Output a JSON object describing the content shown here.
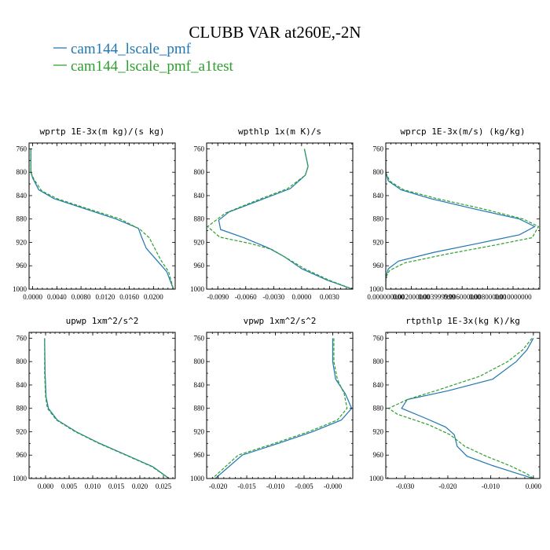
{
  "figure": {
    "title": "CLUBB VAR at260E,-2N",
    "legend": [
      {
        "label": "cam144_lscale_pmf",
        "color": "#1f77b4",
        "dash": "solid"
      },
      {
        "label": "cam144_lscale_pmf_a1test",
        "color": "#2ca02c",
        "dash": "dashed"
      }
    ]
  },
  "chart_data": [
    {
      "type": "line",
      "title": "wprtp  1E-3x(m kg)/(s kg)",
      "y": {
        "label": "",
        "reversed": true,
        "range": [
          1000,
          750
        ],
        "ticks": [
          760,
          800,
          840,
          880,
          920,
          960,
          1000
        ],
        "tick_labels": [
          "760",
          "800",
          "840",
          "880",
          "920",
          "960",
          "1000"
        ]
      },
      "x": {
        "label": "",
        "range": [
          -0.0006,
          0.0236
        ],
        "ticks": [
          0.0,
          0.004,
          0.008,
          0.012,
          0.016,
          0.02
        ],
        "tick_labels": [
          "0.0000",
          "0.0040",
          "0.0080",
          "0.0120",
          "0.0160",
          "0.0200"
        ]
      },
      "series": [
        {
          "name": "cam144_lscale_pmf",
          "color": "#1f77b4",
          "dash": "solid",
          "x": [
            -0.0003,
            -0.0003,
            0.0,
            0.001,
            0.0035,
            0.0085,
            0.0138,
            0.0175,
            0.018,
            0.0188,
            0.0205,
            0.0222,
            0.0233
          ],
          "y": [
            760,
            800,
            810,
            830,
            845,
            862,
            880,
            896,
            910,
            930,
            950,
            970,
            1000
          ]
        },
        {
          "name": "cam144_lscale_pmf_a1test",
          "color": "#2ca02c",
          "dash": "dashed",
          "x": [
            -0.0003,
            -0.0003,
            0.0002,
            0.0015,
            0.004,
            0.009,
            0.0145,
            0.0178,
            0.0193,
            0.0202,
            0.0212,
            0.0225,
            0.0233
          ],
          "y": [
            760,
            800,
            812,
            832,
            845,
            862,
            880,
            898,
            912,
            930,
            950,
            970,
            1000
          ]
        }
      ]
    },
    {
      "type": "line",
      "title": "wpthlp  1x(m K)/s",
      "y": {
        "label": "",
        "reversed": true,
        "range": [
          1000,
          750
        ],
        "ticks": [
          760,
          800,
          840,
          880,
          920,
          960,
          1000
        ],
        "tick_labels": [
          "760",
          "800",
          "840",
          "880",
          "920",
          "960",
          "1000"
        ]
      },
      "x": {
        "label": "",
        "range": [
          -0.0102,
          0.0055
        ],
        "ticks": [
          -0.009,
          -0.006,
          -0.003,
          0.0,
          0.003
        ],
        "tick_labels": [
          "-0.0090",
          "-0.0060",
          "-0.0030",
          "0.0000",
          "0.0030"
        ]
      },
      "series": [
        {
          "name": "cam144_lscale_pmf",
          "color": "#1f77b4",
          "dash": "solid",
          "x": [
            0.0003,
            0.0007,
            0.0004,
            -0.0012,
            -0.0045,
            -0.0078,
            -0.0089,
            -0.0087,
            -0.0062,
            -0.0035,
            -0.0018,
            0.0,
            0.0028,
            0.0055
          ],
          "y": [
            760,
            790,
            805,
            828,
            848,
            868,
            882,
            898,
            912,
            930,
            945,
            965,
            985,
            1000
          ]
        },
        {
          "name": "cam144_lscale_pmf_a1test",
          "color": "#2ca02c",
          "dash": "dashed",
          "x": [
            0.0003,
            0.0007,
            0.0004,
            -0.0015,
            -0.0048,
            -0.0082,
            -0.0101,
            -0.0088,
            -0.0055,
            -0.0032,
            -0.0018,
            0.0003,
            0.003,
            0.0055
          ],
          "y": [
            760,
            790,
            805,
            828,
            848,
            870,
            893,
            911,
            922,
            932,
            945,
            965,
            985,
            1000
          ]
        }
      ]
    },
    {
      "type": "line",
      "title": "wprcp  1E-3x(m/s) (kg/kg)",
      "y": {
        "label": "",
        "reversed": true,
        "range": [
          1000,
          750
        ],
        "ticks": [
          760,
          800,
          840,
          880,
          920,
          960,
          1000
        ],
        "tick_labels": [
          "760",
          "800",
          "840",
          "880",
          "920",
          "960",
          "1000"
        ]
      },
      "x": {
        "label": "",
        "range": [
          0.0,
          0.0121
        ],
        "ticks": [
          0.0,
          0.002,
          0.004,
          0.006,
          0.008,
          0.01
        ],
        "tick_labels": [
          "0.000000000",
          "0.002000000",
          "0.003999999",
          "0.006000000",
          "0.008000000",
          "0.010000000"
        ]
      },
      "series": [
        {
          "name": "cam144_lscale_pmf",
          "color": "#1f77b4",
          "dash": "solid",
          "x": [
            0.0,
            0.0,
            0.0002,
            0.0012,
            0.0035,
            0.0068,
            0.0105,
            0.0117,
            0.0105,
            0.0072,
            0.0038,
            0.001,
            0.0002,
            0.0,
            0.0
          ],
          "y": [
            760,
            800,
            815,
            830,
            845,
            862,
            880,
            893,
            907,
            922,
            937,
            952,
            965,
            980,
            1000
          ]
        },
        {
          "name": "cam144_lscale_pmf_a1test",
          "color": "#2ca02c",
          "dash": "dashed",
          "x": [
            0.0,
            0.0,
            0.0003,
            0.0014,
            0.004,
            0.0075,
            0.0108,
            0.012,
            0.0115,
            0.0085,
            0.0048,
            0.0015,
            0.0003,
            0.0,
            0.0
          ],
          "y": [
            760,
            800,
            815,
            830,
            845,
            862,
            880,
            893,
            912,
            925,
            940,
            955,
            968,
            980,
            1000
          ]
        }
      ]
    },
    {
      "type": "line",
      "title": "upwp  1xm^2/s^2",
      "y": {
        "label": "",
        "reversed": true,
        "range": [
          1000,
          750
        ],
        "ticks": [
          760,
          800,
          840,
          880,
          920,
          960,
          1000
        ],
        "tick_labels": [
          "760",
          "800",
          "840",
          "880",
          "920",
          "960",
          "1000"
        ]
      },
      "x": {
        "label": "",
        "range": [
          -0.0035,
          0.0275
        ],
        "ticks": [
          0.0,
          0.005,
          0.01,
          0.015,
          0.02,
          0.025
        ],
        "tick_labels": [
          "0.000",
          "0.005",
          "0.010",
          "0.015",
          "0.020",
          "0.025"
        ]
      },
      "series": [
        {
          "name": "cam144_lscale_pmf",
          "color": "#1f77b4",
          "dash": "solid",
          "x": [
            -0.0002,
            -0.0001,
            0.0001,
            0.0006,
            0.0025,
            0.0065,
            0.0115,
            0.0172,
            0.0228,
            0.0262
          ],
          "y": [
            760,
            820,
            860,
            880,
            900,
            920,
            940,
            960,
            980,
            1000
          ]
        },
        {
          "name": "cam144_lscale_pmf_a1test",
          "color": "#2ca02c",
          "dash": "dashed",
          "x": [
            -0.0002,
            -0.0002,
            0.0,
            0.0004,
            0.0023,
            0.0063,
            0.0113,
            0.017,
            0.0226,
            0.0262
          ],
          "y": [
            760,
            820,
            860,
            880,
            900,
            920,
            940,
            960,
            980,
            1000
          ]
        }
      ]
    },
    {
      "type": "line",
      "title": "vpwp  1xm^2/s^2",
      "y": {
        "label": "",
        "reversed": true,
        "range": [
          1000,
          750
        ],
        "ticks": [
          760,
          800,
          840,
          880,
          920,
          960,
          1000
        ],
        "tick_labels": [
          "760",
          "800",
          "840",
          "880",
          "920",
          "960",
          "1000"
        ]
      },
      "x": {
        "label": "",
        "range": [
          -0.022,
          0.0035
        ],
        "ticks": [
          -0.02,
          -0.015,
          -0.01,
          -0.005,
          0.0
        ],
        "tick_labels": [
          "-0.020",
          "-0.015",
          "-0.010",
          "-0.005",
          "-0.000"
        ]
      },
      "series": [
        {
          "name": "cam144_lscale_pmf",
          "color": "#1f77b4",
          "dash": "solid",
          "x": [
            0.0,
            0.0,
            0.0005,
            0.0022,
            0.0033,
            0.0015,
            -0.0035,
            -0.0095,
            -0.0158,
            -0.0205
          ],
          "y": [
            760,
            800,
            830,
            855,
            880,
            900,
            920,
            940,
            960,
            1000
          ]
        },
        {
          "name": "cam144_lscale_pmf_a1test",
          "color": "#2ca02c",
          "dash": "dashed",
          "x": [
            0.0002,
            0.0002,
            0.0008,
            0.002,
            0.0025,
            0.0008,
            -0.0042,
            -0.0102,
            -0.0165,
            -0.021
          ],
          "y": [
            760,
            800,
            830,
            855,
            880,
            900,
            920,
            940,
            960,
            1000
          ]
        }
      ]
    },
    {
      "type": "line",
      "title": "rtpthlp  1E-3x(kg K)/kg",
      "y": {
        "label": "",
        "reversed": true,
        "range": [
          1000,
          750
        ],
        "ticks": [
          760,
          800,
          840,
          880,
          920,
          960,
          1000
        ],
        "tick_labels": [
          "760",
          "800",
          "840",
          "880",
          "920",
          "960",
          "1000"
        ]
      },
      "x": {
        "label": "",
        "range": [
          -0.0345,
          0.0015
        ],
        "ticks": [
          -0.03,
          -0.02,
          -0.01,
          0.0
        ],
        "tick_labels": [
          "-0.030",
          "-0.020",
          "-0.010",
          "0.000"
        ]
      },
      "series": [
        {
          "name": "cam144_lscale_pmf",
          "color": "#1f77b4",
          "dash": "solid",
          "x": [
            0.0,
            -0.0015,
            -0.004,
            -0.0095,
            -0.02,
            -0.0295,
            -0.0308,
            -0.0255,
            -0.0205,
            -0.0185,
            -0.0178,
            -0.0155,
            -0.0095,
            -0.0035,
            0.0
          ],
          "y": [
            760,
            780,
            800,
            830,
            850,
            865,
            880,
            896,
            912,
            925,
            945,
            962,
            978,
            992,
            1000
          ]
        },
        {
          "name": "cam144_lscale_pmf_a1test",
          "color": "#2ca02c",
          "dash": "dashed",
          "x": [
            -0.0003,
            -0.0025,
            -0.006,
            -0.0125,
            -0.022,
            -0.0295,
            -0.0338,
            -0.0318,
            -0.0245,
            -0.0195,
            -0.016,
            -0.011,
            -0.0055,
            -0.0015,
            0.0
          ],
          "y": [
            760,
            780,
            800,
            825,
            848,
            865,
            880,
            890,
            908,
            925,
            945,
            962,
            978,
            992,
            1000
          ]
        }
      ]
    }
  ]
}
